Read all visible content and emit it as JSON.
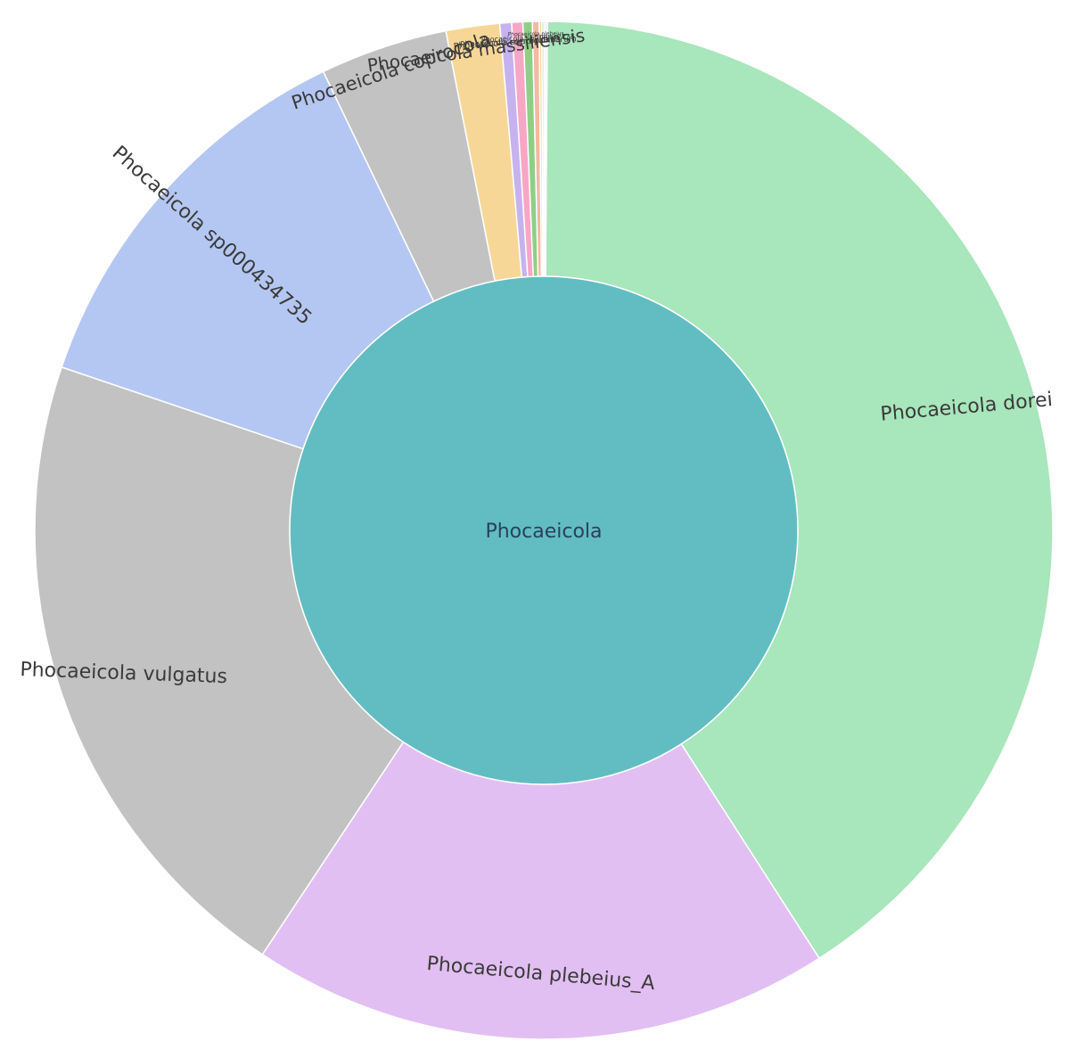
{
  "chart_data": {
    "type": "sunburst",
    "center": {
      "label": "Phocaeicola",
      "color": "#62bdc2"
    },
    "slices": [
      {
        "label": "Phocaeicola dorei",
        "value": 38.3,
        "color": "#a8e6bb"
      },
      {
        "label": "Phocaeicola plebeius_A",
        "value": 17.3,
        "color": "#e2bff2"
      },
      {
        "label": "Phocaeicola vulgatus",
        "value": 19.6,
        "color": "#c2c2c2"
      },
      {
        "label": "Phocaeicola sp000434735",
        "value": 11.9,
        "color": "#b4c7f2"
      },
      {
        "label": "Phocaeicola coprocola",
        "value": 3.8,
        "color": "#c2c2c2"
      },
      {
        "label": "Phocaeicola massiliensis",
        "value": 1.6,
        "color": "#f7d797"
      },
      {
        "label": "Phocaeicola coprophilus",
        "value": 0.35,
        "color": "#c6b2ee"
      },
      {
        "label": "Phocaeicola merdigallinarum",
        "value": 0.33,
        "color": "#f7a6c6"
      },
      {
        "label": "Phocaeicola sp000432735",
        "value": 0.28,
        "color": "#8fcf85"
      },
      {
        "label": "Phocaeicola plebeius",
        "value": 0.2,
        "color": "#f4b8a3"
      },
      {
        "label": "",
        "value": 0.08,
        "color": "#f7d797"
      },
      {
        "label": "",
        "value": 0.06,
        "color": "#c2c2c2"
      },
      {
        "label": "",
        "value": 0.05,
        "color": "#b4c7f2"
      },
      {
        "label": "",
        "value": 0.05,
        "color": "#e2bff2"
      }
    ]
  }
}
